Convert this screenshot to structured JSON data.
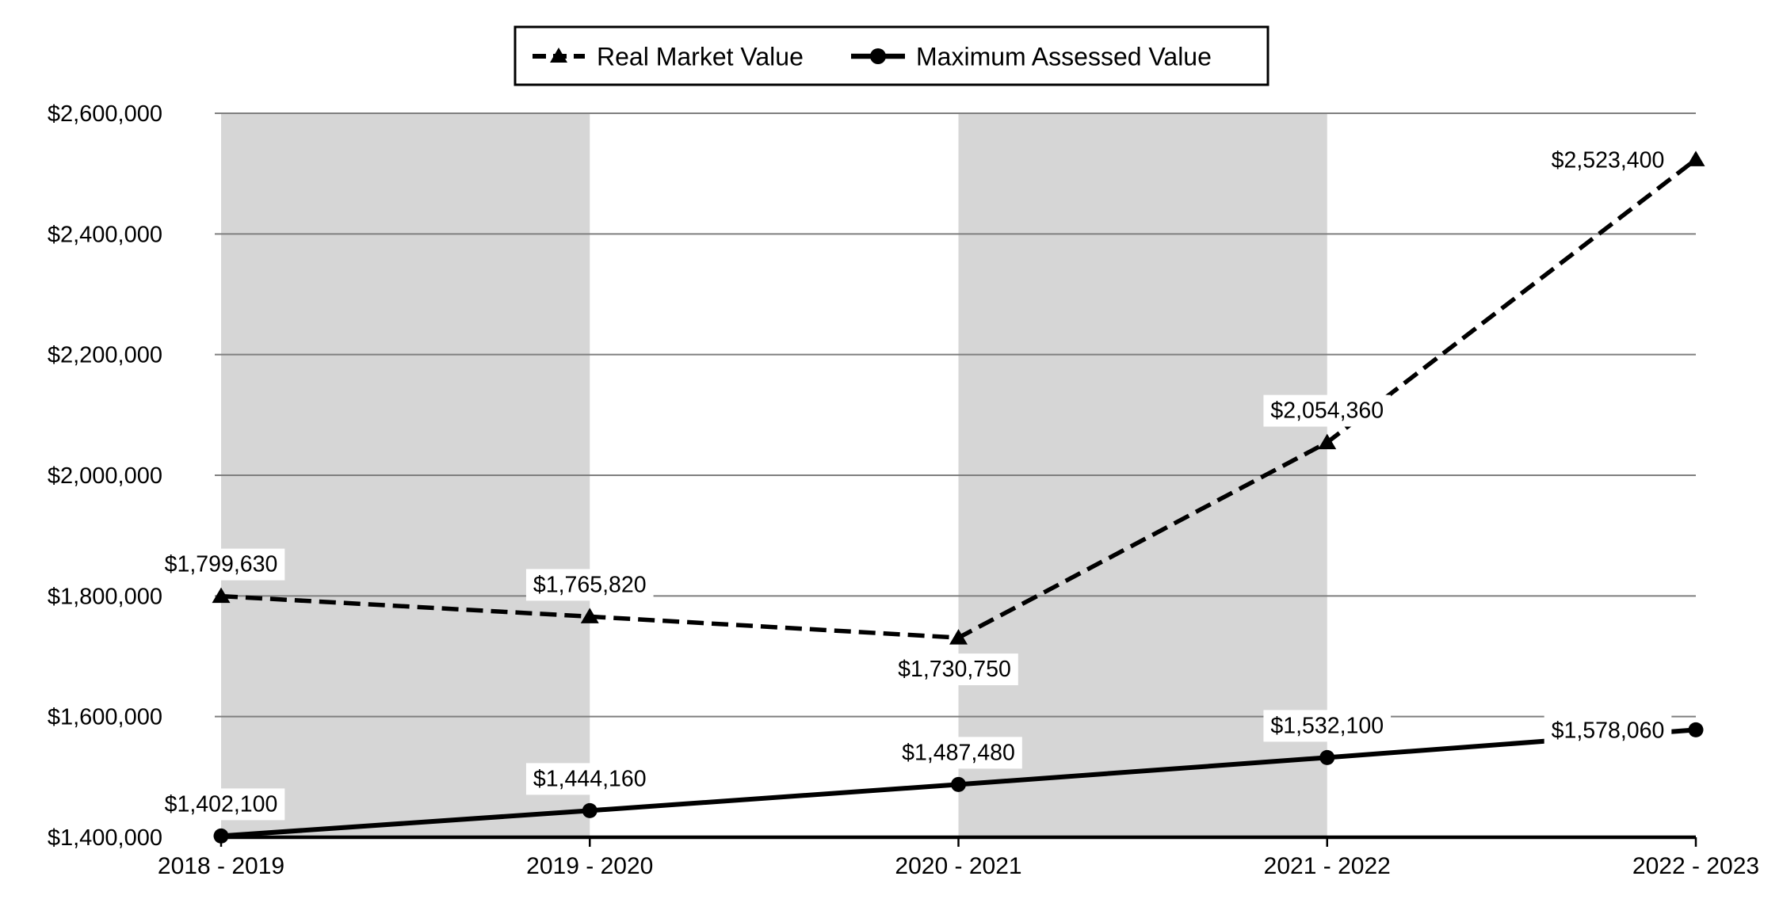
{
  "chart_data": {
    "type": "line",
    "title": "",
    "categories": [
      "2018 - 2019",
      "2019 - 2020",
      "2020 - 2021",
      "2021 - 2022",
      "2022 - 2023"
    ],
    "series": [
      {
        "name": "Real Market Value",
        "line_style": "dashed",
        "marker": "triangle",
        "color": "#000000",
        "values": [
          1799630,
          1765820,
          1730750,
          2054360,
          2523400
        ],
        "labels": [
          "$1,799,630",
          "$1,765,820",
          "$1,730,750",
          "$2,054,360",
          "$2,523,400"
        ],
        "label_positions": [
          "above",
          "above",
          "below",
          "above",
          "left"
        ]
      },
      {
        "name": "Maximum Assessed Value",
        "line_style": "solid",
        "marker": "circle",
        "color": "#000000",
        "values": [
          1402100,
          1444160,
          1487480,
          1532100,
          1578060
        ],
        "labels": [
          "$1,402,100",
          "$1,444,160",
          "$1,487,480",
          "$1,532,100",
          "$1,578,060"
        ],
        "label_positions": [
          "above",
          "above",
          "above",
          "above",
          "left"
        ]
      }
    ],
    "y_axis": {
      "min": 1400000,
      "max": 2600000,
      "step": 200000,
      "tick_labels": [
        "$1,400,000",
        "$1,600,000",
        "$1,800,000",
        "$2,000,000",
        "$2,200,000",
        "$2,400,000",
        "$2,600,000"
      ]
    },
    "x_axis": {
      "tick_labels": [
        "2018 - 2019",
        "2019 - 2020",
        "2020 - 2021",
        "2021 - 2022",
        "2022 - 2023"
      ]
    },
    "legend": {
      "position": "top",
      "entries": [
        "Real Market Value",
        "Maximum Assessed Value"
      ]
    },
    "grid": true,
    "plot_bands": {
      "color": "#d6d6d6",
      "spans": [
        [
          0,
          1
        ],
        [
          2,
          3
        ]
      ]
    },
    "colors": {
      "background": "#ffffff",
      "gridline": "#7f7f7f",
      "axis": "#000000",
      "band": "#d6d6d6",
      "series": "#000000",
      "label_background": "#ffffff"
    }
  }
}
